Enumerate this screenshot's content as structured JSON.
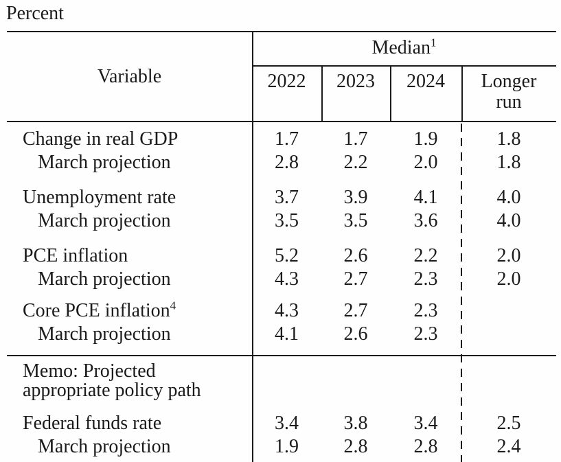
{
  "colors": {
    "ink": "#1b1b1b",
    "background": "#fefefe"
  },
  "page": {
    "unit_label": "Percent"
  },
  "table": {
    "header": {
      "variable_label": "Variable",
      "median": {
        "text": "Median",
        "footnote": "1"
      },
      "years": [
        "2022",
        "2023",
        "2024"
      ],
      "longer_run_label": "Longer run"
    },
    "march_label": "March projection",
    "groups": [
      {
        "label": "Change in real GDP",
        "footnote": "",
        "values": [
          "1.7",
          "1.7",
          "1.9",
          "1.8"
        ],
        "march_values": [
          "2.8",
          "2.2",
          "2.0",
          "1.8"
        ]
      },
      {
        "label": "Unemployment rate",
        "footnote": "",
        "values": [
          "3.7",
          "3.9",
          "4.1",
          "4.0"
        ],
        "march_values": [
          "3.5",
          "3.5",
          "3.6",
          "4.0"
        ]
      },
      {
        "label": "PCE inflation",
        "footnote": "",
        "values": [
          "5.2",
          "2.6",
          "2.2",
          "2.0"
        ],
        "march_values": [
          "4.3",
          "2.7",
          "2.3",
          "2.0"
        ]
      },
      {
        "label": "Core PCE inflation",
        "footnote": "4",
        "values": [
          "4.3",
          "2.7",
          "2.3",
          ""
        ],
        "march_values": [
          "4.1",
          "2.6",
          "2.3",
          ""
        ]
      }
    ],
    "memo": {
      "lines": [
        "Memo: Projected",
        "appropriate policy path"
      ]
    },
    "policy_groups": [
      {
        "label": "Federal funds rate",
        "footnote": "",
        "values": [
          "3.4",
          "3.8",
          "3.4",
          "2.5"
        ],
        "march_values": [
          "1.9",
          "2.8",
          "2.8",
          "2.4"
        ]
      }
    ]
  }
}
